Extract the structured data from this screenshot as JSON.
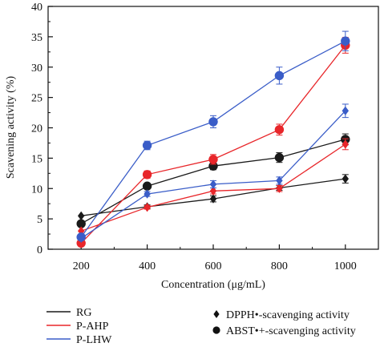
{
  "chart_data": {
    "type": "line",
    "xlabel": "Concentration (μg/mL)",
    "ylabel": "Scavening activity (%)",
    "x": [
      200,
      400,
      600,
      800,
      1000
    ],
    "xticks": [
      "200",
      "400",
      "600",
      "800",
      "1000"
    ],
    "xlim": [
      100,
      1100
    ],
    "ylim": [
      0,
      40
    ],
    "yticks": [
      "0",
      "5",
      "10",
      "15",
      "20",
      "25",
      "30",
      "35",
      "40"
    ],
    "grid": false,
    "series": [
      {
        "name": "RG",
        "assay": "DPPH",
        "color": "#1a1a1a",
        "marker": "diamond",
        "values": [
          5.5,
          7.0,
          8.3,
          10.1,
          11.6
        ],
        "errors": [
          0,
          0.3,
          0.5,
          0.4,
          0.7
        ]
      },
      {
        "name": "RG",
        "assay": "ABTS",
        "color": "#1a1a1a",
        "marker": "circle",
        "values": [
          4.2,
          10.4,
          13.7,
          15.1,
          18.1
        ],
        "errors": [
          0,
          0.4,
          0.6,
          0.8,
          0.9
        ]
      },
      {
        "name": "P-AHP",
        "assay": "DPPH",
        "color": "#e8262a",
        "marker": "diamond",
        "values": [
          3.0,
          6.9,
          9.6,
          10.0,
          17.3
        ],
        "errors": [
          0,
          0.3,
          0.5,
          0.5,
          0.9
        ]
      },
      {
        "name": "P-AHP",
        "assay": "ABTS",
        "color": "#e8262a",
        "marker": "circle",
        "values": [
          1.0,
          12.3,
          14.8,
          19.7,
          33.6
        ],
        "errors": [
          0,
          0.6,
          0.8,
          0.9,
          1.3
        ]
      },
      {
        "name": "P-LHW",
        "assay": "DPPH",
        "color": "#3a5dc8",
        "marker": "diamond",
        "values": [
          1.8,
          9.1,
          10.7,
          11.3,
          22.8
        ],
        "errors": [
          0,
          0.4,
          0.6,
          0.6,
          1.1
        ]
      },
      {
        "name": "P-LHW",
        "assay": "ABTS",
        "color": "#3a5dc8",
        "marker": "circle",
        "values": [
          2.0,
          17.1,
          21.0,
          28.6,
          34.3
        ],
        "errors": [
          0,
          0.7,
          1.0,
          1.4,
          1.6
        ]
      }
    ],
    "legend": {
      "lines": [
        {
          "label": "RG",
          "color": "#1a1a1a"
        },
        {
          "label": "P-AHP",
          "color": "#e8262a"
        },
        {
          "label": "P-LHW",
          "color": "#3a5dc8"
        }
      ],
      "markers": [
        {
          "label": "DPPH•-scavenging activity",
          "marker": "diamond"
        },
        {
          "label": "ABST•+-scavenging activity",
          "marker": "circle"
        }
      ]
    }
  }
}
